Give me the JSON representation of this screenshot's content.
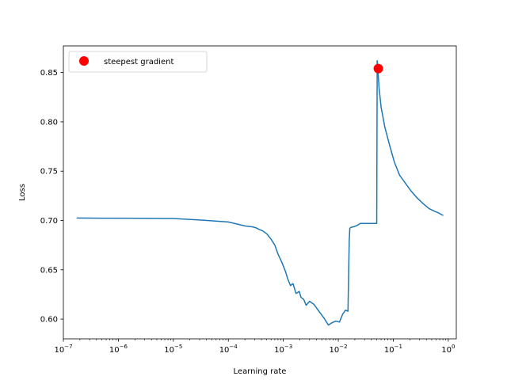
{
  "chart_data": {
    "type": "line",
    "title": "",
    "xlabel": "Learning rate",
    "ylabel": "Loss",
    "xscale": "log",
    "xlim": [
      1e-07,
      1.4
    ],
    "ylim": [
      0.58,
      0.877
    ],
    "x_ticks": [
      {
        "value": 1e-07,
        "base": "10",
        "exp": "−7"
      },
      {
        "value": 1e-06,
        "base": "10",
        "exp": "−6"
      },
      {
        "value": 1e-05,
        "base": "10",
        "exp": "−5"
      },
      {
        "value": 0.0001,
        "base": "10",
        "exp": "−4"
      },
      {
        "value": 0.001,
        "base": "10",
        "exp": "−3"
      },
      {
        "value": 0.01,
        "base": "10",
        "exp": "−2"
      },
      {
        "value": 0.1,
        "base": "10",
        "exp": "−1"
      },
      {
        "value": 1,
        "base": "10",
        "exp": "0"
      }
    ],
    "y_ticks": [
      "0.60",
      "0.65",
      "0.70",
      "0.75",
      "0.80",
      "0.85"
    ],
    "grid": false,
    "legend_position": "top-left",
    "colors": {
      "line": "#1f77b4",
      "marker": "#ff0000"
    },
    "series": [
      {
        "x": [
          1.74e-07,
          3e-07,
          1e-06,
          3e-06,
          1e-05,
          3e-05,
          0.0001,
          0.0002,
          0.00028,
          0.00032,
          0.00036,
          0.00042,
          0.0005,
          0.0006,
          0.0007,
          0.0008,
          0.00095,
          0.0011,
          0.0012,
          0.00135,
          0.0015,
          0.0017,
          0.00195,
          0.0021,
          0.00235,
          0.0026,
          0.003,
          0.0036,
          0.0043,
          0.0055,
          0.0066,
          0.0075,
          0.009,
          0.0105,
          0.012,
          0.0135,
          0.015,
          0.0158,
          0.0162,
          0.017,
          0.02,
          0.022,
          0.025,
          0.03,
          0.04,
          0.05,
          0.051,
          0.052,
          0.055,
          0.06,
          0.07,
          0.085,
          0.105,
          0.13,
          0.17,
          0.21,
          0.27,
          0.35,
          0.45,
          0.58,
          0.65,
          0.81
        ],
        "y": [
          0.7025,
          0.7024,
          0.7023,
          0.7022,
          0.702,
          0.7005,
          0.6985,
          0.6945,
          0.6935,
          0.6925,
          0.691,
          0.6895,
          0.6865,
          0.681,
          0.675,
          0.666,
          0.657,
          0.648,
          0.641,
          0.634,
          0.636,
          0.626,
          0.628,
          0.622,
          0.62,
          0.614,
          0.618,
          0.615,
          0.609,
          0.601,
          0.594,
          0.596,
          0.598,
          0.597,
          0.605,
          0.609,
          0.608,
          0.679,
          0.692,
          0.693,
          0.694,
          0.695,
          0.697,
          0.697,
          0.697,
          0.697,
          0.862,
          0.857,
          0.835,
          0.815,
          0.795,
          0.777,
          0.759,
          0.746,
          0.737,
          0.73,
          0.723,
          0.717,
          0.712,
          0.709,
          0.708,
          0.705
        ]
      }
    ],
    "highlight_point": {
      "label": "steepest gradient",
      "x": 0.0535,
      "y": 0.854
    }
  }
}
